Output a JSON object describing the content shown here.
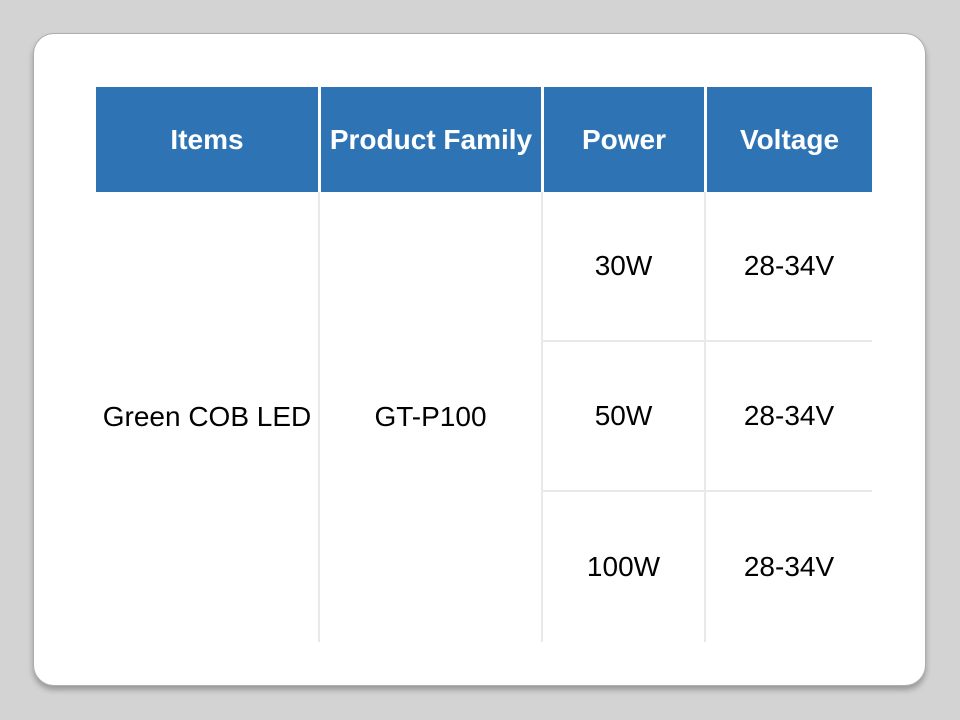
{
  "table": {
    "headers": [
      "Items",
      "Product Family",
      "Power",
      "Voltage"
    ],
    "item_name": "Green COB LED",
    "product_family": "GT-P100",
    "rows": [
      {
        "power": "30W",
        "voltage": "28-34V"
      },
      {
        "power": "50W",
        "voltage": "28-34V"
      },
      {
        "power": "100W",
        "voltage": "28-34V"
      }
    ]
  },
  "colors": {
    "header_bg": "#2E74B5",
    "header_text": "#FFFFFF",
    "body_text": "#000000",
    "grid_line": "#E9E9E9",
    "card_bg": "#FFFFFF",
    "page_bg": "#D3D3D3"
  }
}
